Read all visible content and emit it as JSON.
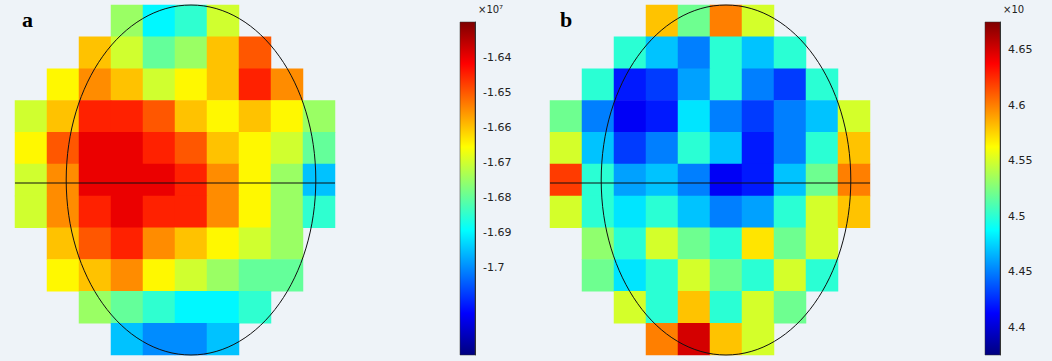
{
  "chart_data": [
    {
      "type": "heatmap",
      "title": "a",
      "tick_labels": false,
      "grid": false,
      "cells": [
        [
          null,
          null,
          null,
          -1.675,
          -1.69,
          -1.685,
          -1.67,
          null,
          null,
          null
        ],
        [
          null,
          null,
          -1.66,
          -1.67,
          -1.68,
          -1.675,
          -1.66,
          -1.65,
          null,
          null
        ],
        [
          null,
          -1.665,
          -1.655,
          -1.66,
          -1.67,
          -1.665,
          -1.66,
          -1.645,
          -1.655,
          null
        ],
        [
          -1.67,
          -1.66,
          -1.645,
          -1.645,
          -1.65,
          -1.66,
          -1.665,
          -1.66,
          -1.665,
          -1.675
        ],
        [
          -1.665,
          -1.65,
          -1.64,
          -1.64,
          -1.645,
          -1.65,
          -1.66,
          -1.665,
          -1.67,
          -1.68
        ],
        [
          -1.67,
          -1.655,
          -1.64,
          -1.64,
          -1.64,
          -1.645,
          -1.655,
          -1.665,
          -1.675,
          -1.695
        ],
        [
          -1.67,
          -1.655,
          -1.645,
          -1.64,
          -1.645,
          -1.645,
          -1.655,
          -1.665,
          -1.675,
          -1.685
        ],
        [
          null,
          -1.66,
          -1.65,
          -1.645,
          -1.655,
          -1.66,
          -1.665,
          -1.67,
          -1.675,
          null
        ],
        [
          null,
          -1.665,
          -1.66,
          -1.655,
          -1.665,
          -1.67,
          -1.675,
          -1.68,
          -1.68,
          null
        ],
        [
          null,
          null,
          -1.675,
          -1.68,
          -1.685,
          -1.69,
          -1.69,
          -1.685,
          null,
          null
        ],
        [
          null,
          null,
          null,
          -1.695,
          -1.7,
          -1.7,
          -1.695,
          null,
          null,
          null
        ]
      ],
      "colorbar": {
        "range": [
          -1.725,
          -1.63
        ],
        "ticks": [
          -1.64,
          -1.65,
          -1.66,
          -1.67,
          -1.68,
          -1.69,
          -1.7
        ],
        "multiplier": "×10⁷"
      }
    },
    {
      "type": "heatmap",
      "title": "b",
      "tick_labels": false,
      "grid": false,
      "cells": [
        [
          null,
          null,
          null,
          4.58,
          4.52,
          4.6,
          4.55,
          null,
          null,
          null
        ],
        [
          null,
          null,
          4.5,
          4.47,
          4.45,
          4.5,
          4.47,
          4.5,
          null,
          null
        ],
        [
          null,
          4.5,
          4.42,
          4.43,
          4.46,
          4.5,
          4.45,
          4.43,
          4.5,
          null
        ],
        [
          4.52,
          4.45,
          4.41,
          4.42,
          4.48,
          4.45,
          4.43,
          4.45,
          4.47,
          4.55
        ],
        [
          4.55,
          4.47,
          4.43,
          4.45,
          4.5,
          4.47,
          4.42,
          4.45,
          4.5,
          4.58
        ],
        [
          4.62,
          4.5,
          4.46,
          4.47,
          4.45,
          4.41,
          4.42,
          4.47,
          4.52,
          4.6
        ],
        [
          4.55,
          4.5,
          4.48,
          4.5,
          4.47,
          4.45,
          4.46,
          4.5,
          4.55,
          4.58
        ],
        [
          null,
          4.53,
          4.5,
          4.55,
          4.52,
          4.5,
          4.57,
          4.52,
          4.55,
          null
        ],
        [
          null,
          4.52,
          4.48,
          4.5,
          4.55,
          4.52,
          4.5,
          4.55,
          4.5,
          null
        ],
        [
          null,
          null,
          4.55,
          4.5,
          4.58,
          4.5,
          4.55,
          4.52,
          null,
          null
        ],
        [
          null,
          null,
          null,
          4.6,
          4.65,
          4.58,
          4.55,
          null,
          null,
          null
        ]
      ],
      "colorbar": {
        "range": [
          4.375,
          4.675
        ],
        "ticks": [
          4.4,
          4.45,
          4.5,
          4.55,
          4.6,
          4.65
        ],
        "multiplier": "×10"
      }
    }
  ]
}
